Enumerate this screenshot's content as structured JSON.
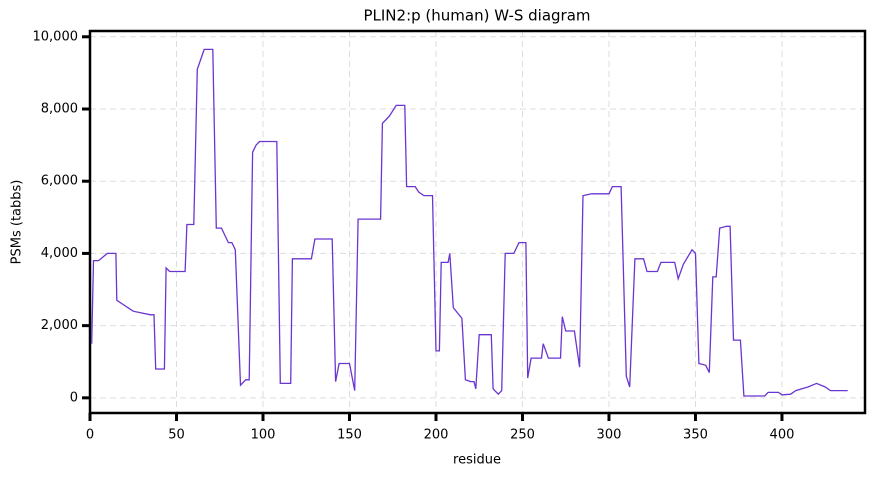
{
  "chart_data": {
    "type": "line",
    "title": "PLIN2:p (human) W-S diagram",
    "xlabel": "residue",
    "ylabel": "PSMs (tabbs)",
    "color": "#6a35d0",
    "grid": true,
    "xlim": [
      0,
      448
    ],
    "ylim": [
      -420,
      10160
    ],
    "xticks": [
      0,
      50,
      100,
      150,
      200,
      250,
      300,
      350,
      400
    ],
    "yticks": [
      0,
      {
        "value": 2000,
        "label": "2,000"
      },
      {
        "value": 4000,
        "label": "4,000"
      },
      {
        "value": 6000,
        "label": "6,000"
      },
      {
        "value": 8000,
        "label": "8,000"
      },
      {
        "value": 10000,
        "label": "10,000"
      }
    ],
    "x": [
      1,
      2,
      5,
      10,
      15,
      15.5,
      25,
      35,
      37,
      38,
      43,
      44,
      46,
      55,
      56,
      60,
      62,
      66,
      71,
      73,
      76,
      78,
      80,
      82,
      84,
      87,
      90,
      92,
      94,
      96,
      98,
      108,
      110,
      116,
      117,
      128,
      130,
      140,
      142,
      144,
      150,
      153,
      155,
      168,
      169,
      173,
      177,
      182,
      183,
      188,
      190,
      193,
      198,
      200,
      202,
      203,
      207,
      208,
      210,
      215,
      217,
      220,
      222,
      223,
      225,
      232,
      233,
      236,
      238,
      240,
      245,
      248,
      252,
      253,
      255,
      261,
      262,
      265,
      272,
      273,
      275,
      280,
      283,
      285,
      290,
      300,
      302,
      307,
      310,
      312,
      315,
      320,
      322,
      328,
      330,
      338,
      340,
      343,
      348,
      350,
      352,
      356,
      358,
      360,
      362,
      364,
      368,
      370,
      372,
      376,
      378,
      390,
      392,
      398,
      400,
      405,
      408,
      415,
      420,
      425,
      428,
      438
    ],
    "values": [
      1500,
      3800,
      3800,
      4000,
      4000,
      2700,
      2400,
      2300,
      2300,
      800,
      800,
      3600,
      3500,
      3500,
      4800,
      4800,
      9100,
      9650,
      9650,
      4700,
      4700,
      4500,
      4300,
      4300,
      4100,
      350,
      500,
      500,
      6800,
      7000,
      7100,
      7100,
      400,
      400,
      3850,
      3850,
      4400,
      4400,
      450,
      950,
      950,
      200,
      4950,
      4950,
      7600,
      7800,
      8100,
      8100,
      5850,
      5850,
      5700,
      5600,
      5600,
      1300,
      1300,
      3750,
      3750,
      4000,
      2500,
      2200,
      500,
      450,
      450,
      250,
      1750,
      1750,
      250,
      100,
      200,
      4000,
      4000,
      4300,
      4300,
      550,
      1100,
      1100,
      1500,
      1100,
      1100,
      2250,
      1850,
      1850,
      850,
      5600,
      5650,
      5650,
      5850,
      5850,
      600,
      300,
      3850,
      3850,
      3500,
      3500,
      3750,
      3750,
      3300,
      3700,
      4100,
      4000,
      950,
      900,
      700,
      3350,
      3350,
      4700,
      4750,
      4750,
      1600,
      1600,
      50,
      50,
      150,
      150,
      80,
      100,
      200,
      300,
      400,
      300,
      200,
      200
    ]
  }
}
